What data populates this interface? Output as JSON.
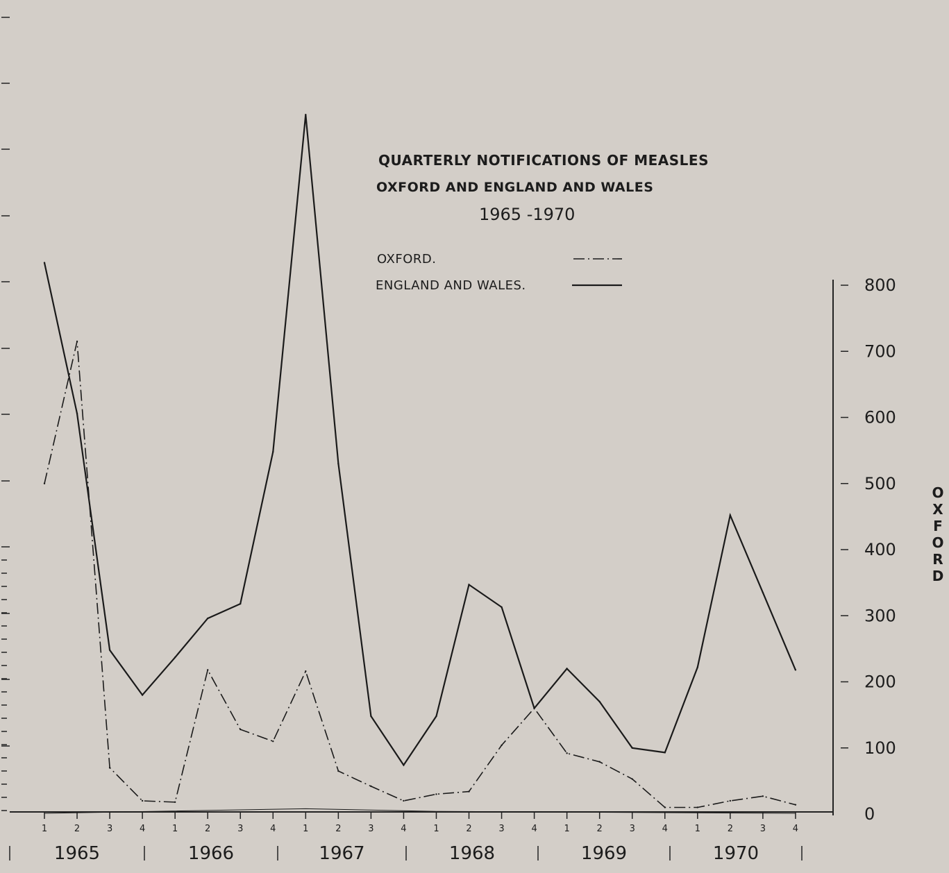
{
  "chart_data": {
    "type": "line",
    "title": "QUARTERLY NOTIFICATIONS OF MEASLES",
    "subtitle": "OXFORD AND ENGLAND AND WALES",
    "period": "1965 -1970",
    "quarter_labels": [
      "1",
      "2",
      "3",
      "4",
      "1",
      "2",
      "3",
      "4",
      "1",
      "2",
      "3",
      "4",
      "1",
      "2",
      "3",
      "4",
      "1",
      "2",
      "3",
      "4",
      "1",
      "2",
      "3",
      "4"
    ],
    "year_labels": [
      "1965",
      "1966",
      "1967",
      "1968",
      "1969",
      "1970"
    ],
    "y_right": {
      "label": "OXFORD",
      "ticks": [
        "800",
        "700",
        "600",
        "500",
        "400",
        "300",
        "200",
        "100",
        "0"
      ],
      "range": [
        0,
        800
      ]
    },
    "series": [
      {
        "name": "OXFORD.",
        "style": "dash-dot",
        "values": [
          500,
          715,
          70,
          20,
          18,
          218,
          128,
          110,
          216,
          65,
          42,
          20,
          30,
          34,
          104,
          160,
          92,
          79,
          53,
          10,
          10,
          20,
          27,
          14
        ]
      },
      {
        "name": "ENGLAND AND WALES.",
        "style": "solid",
        "values": [
          834,
          606,
          248,
          180,
          237,
          296,
          318,
          548,
          1058,
          530,
          148,
          74,
          148,
          347,
          313,
          160,
          220,
          170,
          100,
          93,
          222,
          452,
          335,
          218
        ]
      }
    ],
    "grid": false,
    "legend_position": "upper-center",
    "colors": {
      "background": "#d3cec8",
      "ink": "#1a1a1a"
    }
  }
}
